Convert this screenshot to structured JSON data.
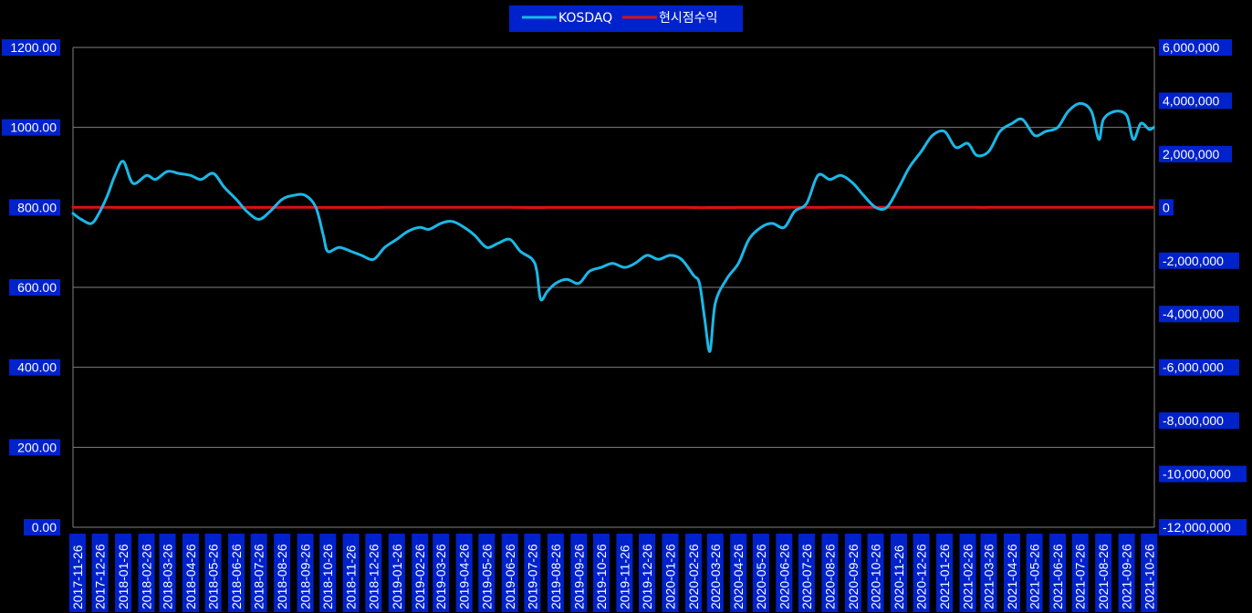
{
  "chart_data": {
    "type": "line",
    "title": "",
    "xlabel": "",
    "ylabel": "",
    "legend_position": "top-center",
    "grid": true,
    "y_left": {
      "range": [
        0,
        1200
      ],
      "ticks": [
        "0.00",
        "200.00",
        "400.00",
        "600.00",
        "800.00",
        "1000.00",
        "1200.00"
      ]
    },
    "y_right": {
      "range": [
        -12000000,
        6000000
      ],
      "ticks": [
        "-12,000,000",
        "-10,000,000",
        "-8,000,000",
        "-6,000,000",
        "-4,000,000",
        "-2,000,000",
        "0",
        "2,000,000",
        "4,000,000",
        "6,000,000"
      ]
    },
    "x_ticks": [
      "2017-11-26",
      "2017-12-26",
      "2018-01-26",
      "2018-02-26",
      "2018-03-26",
      "2018-04-26",
      "2018-05-26",
      "2018-06-26",
      "2018-07-26",
      "2018-08-26",
      "2018-09-26",
      "2018-10-26",
      "2018-11-26",
      "2018-12-26",
      "2019-01-26",
      "2019-02-26",
      "2019-03-26",
      "2019-04-26",
      "2019-05-26",
      "2019-06-26",
      "2019-07-26",
      "2019-08-26",
      "2019-09-26",
      "2019-10-26",
      "2019-11-26",
      "2019-12-26",
      "2020-01-26",
      "2020-02-26",
      "2020-03-26",
      "2020-04-26",
      "2020-05-26",
      "2020-06-26",
      "2020-07-26",
      "2020-08-26",
      "2020-09-26",
      "2020-10-26",
      "2020-11-26",
      "2020-12-26",
      "2021-01-26",
      "2021-02-26",
      "2021-03-26",
      "2021-04-26",
      "2021-05-26",
      "2021-06-26",
      "2021-07-26",
      "2021-08-26",
      "2021-09-26",
      "2021-10-26"
    ],
    "series": [
      {
        "name": "KOSDAQ",
        "axis": "left",
        "color": "#1ab8e8",
        "x": [
          "2017-11-20",
          "2017-12-01",
          "2017-12-15",
          "2017-12-26",
          "2018-01-05",
          "2018-01-15",
          "2018-01-26",
          "2018-02-08",
          "2018-02-26",
          "2018-03-10",
          "2018-03-26",
          "2018-04-10",
          "2018-04-26",
          "2018-05-10",
          "2018-05-26",
          "2018-06-10",
          "2018-06-26",
          "2018-07-10",
          "2018-07-26",
          "2018-08-10",
          "2018-08-26",
          "2018-09-10",
          "2018-09-26",
          "2018-10-10",
          "2018-10-20",
          "2018-10-26",
          "2018-11-10",
          "2018-11-26",
          "2018-12-10",
          "2018-12-26",
          "2019-01-10",
          "2019-01-26",
          "2019-02-10",
          "2019-02-26",
          "2019-03-10",
          "2019-03-26",
          "2019-04-10",
          "2019-04-26",
          "2019-05-10",
          "2019-05-26",
          "2019-06-10",
          "2019-06-26",
          "2019-07-10",
          "2019-07-26",
          "2019-08-01",
          "2019-08-06",
          "2019-08-15",
          "2019-08-26",
          "2019-09-10",
          "2019-09-26",
          "2019-10-10",
          "2019-10-26",
          "2019-11-10",
          "2019-11-26",
          "2019-12-10",
          "2019-12-26",
          "2020-01-10",
          "2020-01-26",
          "2020-02-10",
          "2020-02-26",
          "2020-03-05",
          "2020-03-12",
          "2020-03-19",
          "2020-03-26",
          "2020-04-10",
          "2020-04-26",
          "2020-05-10",
          "2020-05-26",
          "2020-06-10",
          "2020-06-26",
          "2020-07-10",
          "2020-07-26",
          "2020-08-10",
          "2020-08-26",
          "2020-09-10",
          "2020-09-26",
          "2020-10-10",
          "2020-10-26",
          "2020-11-10",
          "2020-11-26",
          "2020-12-10",
          "2020-12-26",
          "2021-01-10",
          "2021-01-26",
          "2021-02-10",
          "2021-02-26",
          "2021-03-10",
          "2021-03-26",
          "2021-04-10",
          "2021-04-26",
          "2021-05-10",
          "2021-05-26",
          "2021-06-10",
          "2021-06-26",
          "2021-07-10",
          "2021-07-26",
          "2021-08-10",
          "2021-08-20",
          "2021-08-26",
          "2021-09-10",
          "2021-09-26",
          "2021-10-05",
          "2021-10-15",
          "2021-10-26",
          "2021-11-01"
        ],
        "values": [
          785,
          770,
          760,
          790,
          830,
          880,
          915,
          860,
          880,
          870,
          890,
          885,
          880,
          870,
          885,
          850,
          820,
          790,
          770,
          790,
          820,
          830,
          830,
          800,
          730,
          690,
          700,
          690,
          680,
          670,
          700,
          720,
          740,
          750,
          745,
          760,
          765,
          750,
          730,
          700,
          710,
          720,
          690,
          670,
          640,
          570,
          590,
          610,
          620,
          610,
          640,
          650,
          660,
          650,
          660,
          680,
          670,
          680,
          670,
          630,
          610,
          520,
          440,
          560,
          620,
          660,
          720,
          750,
          760,
          750,
          790,
          810,
          880,
          870,
          880,
          860,
          830,
          800,
          800,
          850,
          900,
          940,
          980,
          990,
          950,
          960,
          930,
          940,
          990,
          1010,
          1020,
          980,
          990,
          1000,
          1040,
          1060,
          1040,
          970,
          1020,
          1040,
          1030,
          970,
          1010,
          995,
          1000
        ]
      },
      {
        "name": "현시점수익",
        "axis": "right",
        "color": "#e01010",
        "x": [
          "2017-11-20",
          "2017-12-01",
          "2017-12-15",
          "2017-12-26",
          "2018-01-10",
          "2018-01-26",
          "2018-02-08",
          "2018-02-26",
          "2018-03-10",
          "2018-03-26",
          "2018-04-10",
          "2018-04-26",
          "2018-05-10",
          "2018-05-26",
          "2018-06-10",
          "2018-06-26",
          "2018-07-10",
          "2018-07-26",
          "2018-08-10",
          "2018-08-26",
          "2018-09-10",
          "2018-09-26",
          "2018-10-05",
          "2018-10-15",
          "2018-10-26",
          "2018-11-10",
          "2018-11-26",
          "2018-12-10",
          "2018-12-26",
          "2019-01-10",
          "2019-01-26",
          "2019-02-10",
          "2019-02-26",
          "2019-03-10",
          "2019-03-26",
          "2019-04-10",
          "2019-04-26",
          "2019-05-10",
          "2019-05-26",
          "2019-06-10",
          "2019-06-26",
          "2019-07-10",
          "2019-07-20",
          "2019-07-26",
          "2019-08-01",
          "2019-08-06",
          "2019-08-15",
          "2019-08-26",
          "2019-09-10",
          "2019-09-26",
          "2019-10-10",
          "2019-10-26",
          "2019-11-10",
          "2019-11-26",
          "2019-12-10",
          "2019-12-26",
          "2020-01-10",
          "2020-01-26",
          "2020-02-10",
          "2020-02-26",
          "2020-03-05",
          "2020-03-12",
          "2020-03-19",
          "2020-03-26",
          "2020-04-10",
          "2020-04-26",
          "2020-05-10",
          "2020-05-26",
          "2020-06-10",
          "2020-06-26",
          "2020-07-10",
          "2020-07-26",
          "2020-08-10",
          "2020-08-26",
          "2020-09-10",
          "2020-09-26",
          "2020-10-10",
          "2020-10-26",
          "2020-11-10",
          "2020-11-26",
          "2020-12-10",
          "2020-12-26",
          "2021-01-10",
          "2021-01-26",
          "2021-02-10",
          "2021-02-26",
          "2021-03-10",
          "2021-03-20",
          "2021-03-26",
          "2021-04-10",
          "2021-04-26",
          "2021-05-10",
          "2021-05-26",
          "2021-06-10",
          "2021-06-26",
          "2021-07-10",
          "2021-07-26",
          "2021-08-10",
          "2021-08-20",
          "2021-08-26",
          "2021-09-10",
          "2021-09-20",
          "2021-09-26",
          "2021-10-05",
          "2021-10-15",
          "2021-10-26",
          "2021-11-01"
        ],
        "values": [
          0,
          300,
          -200,
          100,
          200,
          -800,
          -600,
          -1000,
          -1200,
          -1500,
          -1800,
          -1200,
          -1400,
          -1300,
          -2000,
          -3000,
          -2500,
          -1300,
          -800,
          -200,
          200,
          800,
          500,
          -1200,
          -3000,
          -2300,
          -1500,
          -1000,
          -1800,
          0,
          200,
          500,
          800,
          900,
          1000,
          2500,
          2800,
          2200,
          1500,
          1200,
          -500,
          -1000,
          -4000,
          -6500,
          -5500,
          -5000,
          -3500,
          -2000,
          -2500,
          -2500,
          -2000,
          -2000,
          -1500,
          -2500,
          -2800,
          -3000,
          -3800,
          -3500,
          -2700,
          -7000,
          -8000,
          -10800,
          -6200,
          -5200,
          -4500,
          -3800,
          -2500,
          -1200,
          -1000,
          -700,
          400,
          -500,
          -2000,
          -200,
          1000,
          2500,
          2000,
          2800,
          2500,
          1000,
          500,
          0,
          300,
          1000,
          1000,
          500,
          1000,
          -1700,
          1200,
          1500,
          1800,
          1200,
          2000,
          3000,
          3500,
          4100,
          3300,
          2000,
          3800,
          3500,
          4200,
          1500,
          1000,
          2500,
          2800,
          3600,
          3300
        ]
      }
    ]
  }
}
